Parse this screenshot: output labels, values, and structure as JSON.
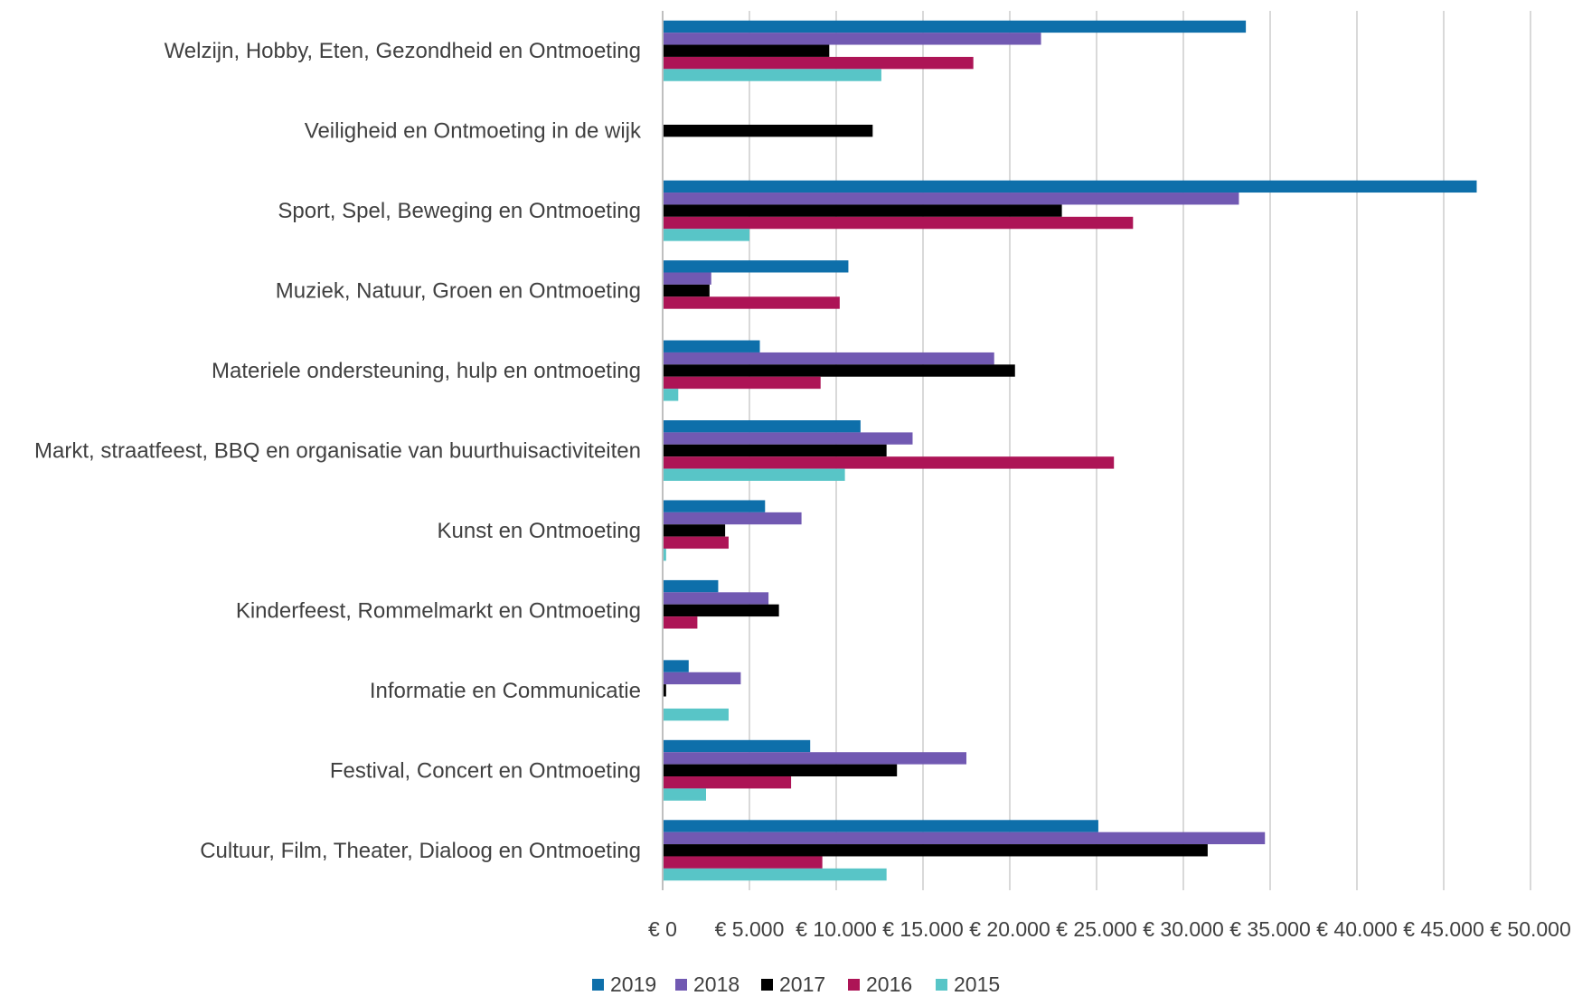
{
  "chart_data": {
    "type": "bar",
    "orientation": "horizontal",
    "title": "",
    "xlabel": "",
    "ylabel": "",
    "categories": [
      "Welzijn, Hobby, Eten, Gezondheid en Ontmoeting",
      "Veiligheid en Ontmoeting in de wijk",
      "Sport, Spel, Beweging en Ontmoeting",
      "Muziek, Natuur, Groen en Ontmoeting",
      "Materiele ondersteuning, hulp en ontmoeting",
      "Markt, straatfeest, BBQ en organisatie van buurthuisactiviteiten",
      "Kunst en Ontmoeting",
      "Kinderfeest, Rommelmarkt en Ontmoeting",
      "Informatie en Communicatie",
      "Festival, Concert en Ontmoeting",
      "Cultuur, Film, Theater, Dialoog en Ontmoeting"
    ],
    "series": [
      {
        "name": "2019",
        "color": "#0e6faa",
        "values": [
          33600,
          0,
          46900,
          10700,
          5600,
          11400,
          5900,
          3200,
          1500,
          8500,
          25100
        ]
      },
      {
        "name": "2018",
        "color": "#7159b2",
        "values": [
          21800,
          0,
          33200,
          2800,
          19100,
          14400,
          8000,
          6100,
          4500,
          17500,
          34700
        ]
      },
      {
        "name": "2017",
        "color": "#000000",
        "values": [
          9600,
          12100,
          23000,
          2700,
          20300,
          12900,
          3600,
          6700,
          200,
          13500,
          31400
        ]
      },
      {
        "name": "2016",
        "color": "#ad1456",
        "values": [
          17900,
          0,
          27100,
          10200,
          9100,
          26000,
          3800,
          2000,
          0,
          7400,
          9200
        ]
      },
      {
        "name": "2015",
        "color": "#58c5c7",
        "values": [
          12600,
          0,
          5000,
          0,
          900,
          10500,
          200,
          0,
          3800,
          2500,
          12900
        ]
      }
    ],
    "xlim": [
      0,
      50000
    ],
    "x_ticks": [
      0,
      5000,
      10000,
      15000,
      20000,
      25000,
      30000,
      35000,
      40000,
      45000,
      50000
    ],
    "x_tick_labels": [
      "€ 0",
      "€ 5.000",
      "€ 10.000",
      "€ 15.000",
      "€ 20.000",
      "€ 25.000",
      "€ 30.000",
      "€ 35.000",
      "€ 40.000",
      "€ 45.000",
      "€ 50.000"
    ],
    "grid": "vertical",
    "legend": "bottom",
    "gridline_color": "#d9d9d9",
    "axis_color": "#bfbfbf"
  }
}
